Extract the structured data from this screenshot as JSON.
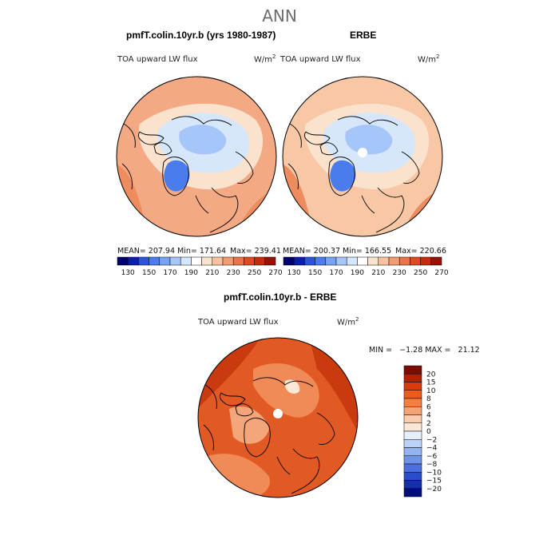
{
  "figure": {
    "season": "ANN",
    "panel1": {
      "title": "pmfT.colin.10yr.b (yrs 1980-1987)",
      "field": "TOA upward LW flux",
      "units": "W/m",
      "units_sup": "2",
      "mean_label": "MEAN= 207.94",
      "min_label": "Min= 171.64",
      "max_label": "Max= 239.41"
    },
    "panel2": {
      "title": "ERBE",
      "field": "TOA upward LW flux",
      "units": "W/m",
      "units_sup": "2",
      "mean_label": "MEAN= 200.37",
      "min_label": "Min= 166.55",
      "max_label": "Max= 220.66"
    },
    "panel3": {
      "title": "pmfT.colin.10yr.b - ERBE",
      "field": "TOA upward LW flux",
      "units": "W/m",
      "units_sup": "2",
      "minmax_label": "MIN =   −1.28 MAX =   21.12"
    }
  },
  "colorbar_abs": {
    "colors": [
      "#00006e",
      "#0a1fb0",
      "#2c53d8",
      "#4a7cec",
      "#78a2f3",
      "#a6c5f8",
      "#d6e6fb",
      "#ffffff",
      "#fbe2cc",
      "#f7c2a0",
      "#f29c72",
      "#ea7448",
      "#dd4b22",
      "#c72a0c",
      "#951205"
    ],
    "tick_labels": [
      "130",
      "150",
      "170",
      "190",
      "210",
      "230",
      "250",
      "270"
    ]
  },
  "colorbar_diff": {
    "colors": [
      "#7d0b02",
      "#b51f06",
      "#da3b0d",
      "#ec5a1d",
      "#f47f3e",
      "#f7a274",
      "#fbccab",
      "#fde8d8",
      "#e7eefc",
      "#bcd2f7",
      "#93b3f1",
      "#6f92e8",
      "#4b6fdc",
      "#2a4ec9",
      "#1530a7",
      "#000f7a"
    ],
    "tick_labels": [
      "20",
      "15",
      "10",
      "8",
      "6",
      "4",
      "2",
      "0",
      "−2",
      "−4",
      "−6",
      "−8",
      "−10",
      "−15",
      "−20"
    ]
  },
  "map_palette": {
    "ocean_warm": "#f7c7a6",
    "ocean_warm2": "#f2a984",
    "land_cool": "#d6e6fb",
    "ice_cool": "#a6c5f8",
    "greenland_low": "#4a7cec",
    "diff_base": "#e15a24",
    "diff_hot": "#c93a0f",
    "diff_mild": "#f08a57",
    "coast": "#000000"
  }
}
